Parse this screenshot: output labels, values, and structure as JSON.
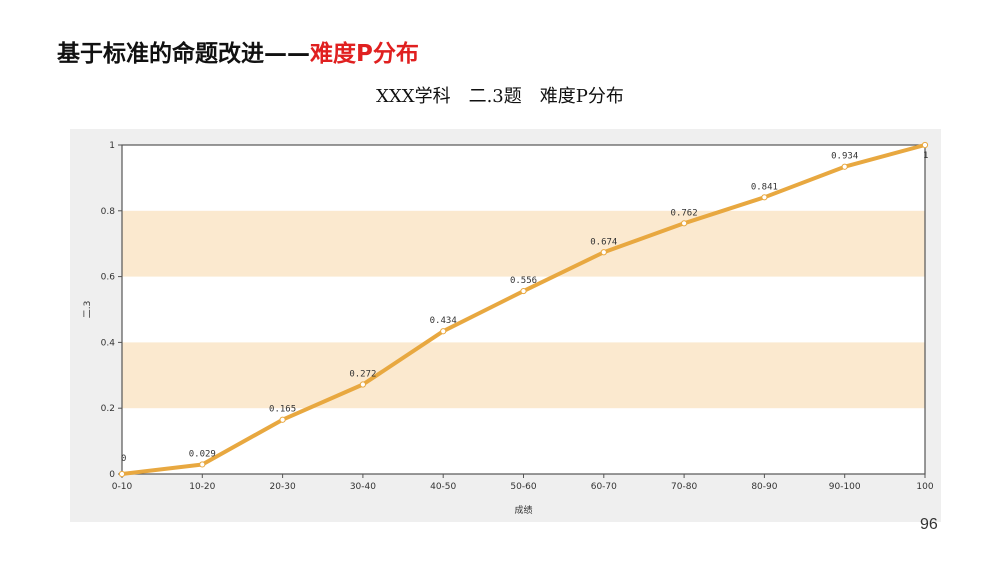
{
  "slide": {
    "title_main": "基于标准的命题改进——",
    "title_accent": "难度P分布",
    "page_number": "96"
  },
  "colors": {
    "line": "#e8a840",
    "band": "#fbe9cf",
    "panel": "#efefef",
    "title_accent": "#e02020"
  },
  "chart_data": {
    "type": "line",
    "title": "XXX学科　二.3题　难度P分布",
    "xlabel": "成绩",
    "ylabel": "二.3",
    "categories": [
      "0-10",
      "10-20",
      "20-30",
      "30-40",
      "40-50",
      "50-60",
      "60-70",
      "70-80",
      "80-90",
      "90-100",
      "100"
    ],
    "values": [
      0,
      0.029,
      0.165,
      0.272,
      0.434,
      0.556,
      0.674,
      0.762,
      0.841,
      0.934,
      1
    ],
    "data_labels": [
      "0",
      "0.029",
      "0.165",
      "0.272",
      "0.434",
      "0.556",
      "0.674",
      "0.762",
      "0.841",
      "0.934",
      "1"
    ],
    "ylim": [
      0,
      1
    ],
    "yticks": [
      0,
      0.2,
      0.4,
      0.6,
      0.8,
      1
    ],
    "ytick_labels": [
      "0",
      "0.2",
      "0.4",
      "0.6",
      "0.8",
      "1"
    ],
    "banded_ranges": [
      [
        0.2,
        0.4
      ],
      [
        0.6,
        0.8
      ]
    ],
    "grid": false,
    "legend": "none"
  }
}
